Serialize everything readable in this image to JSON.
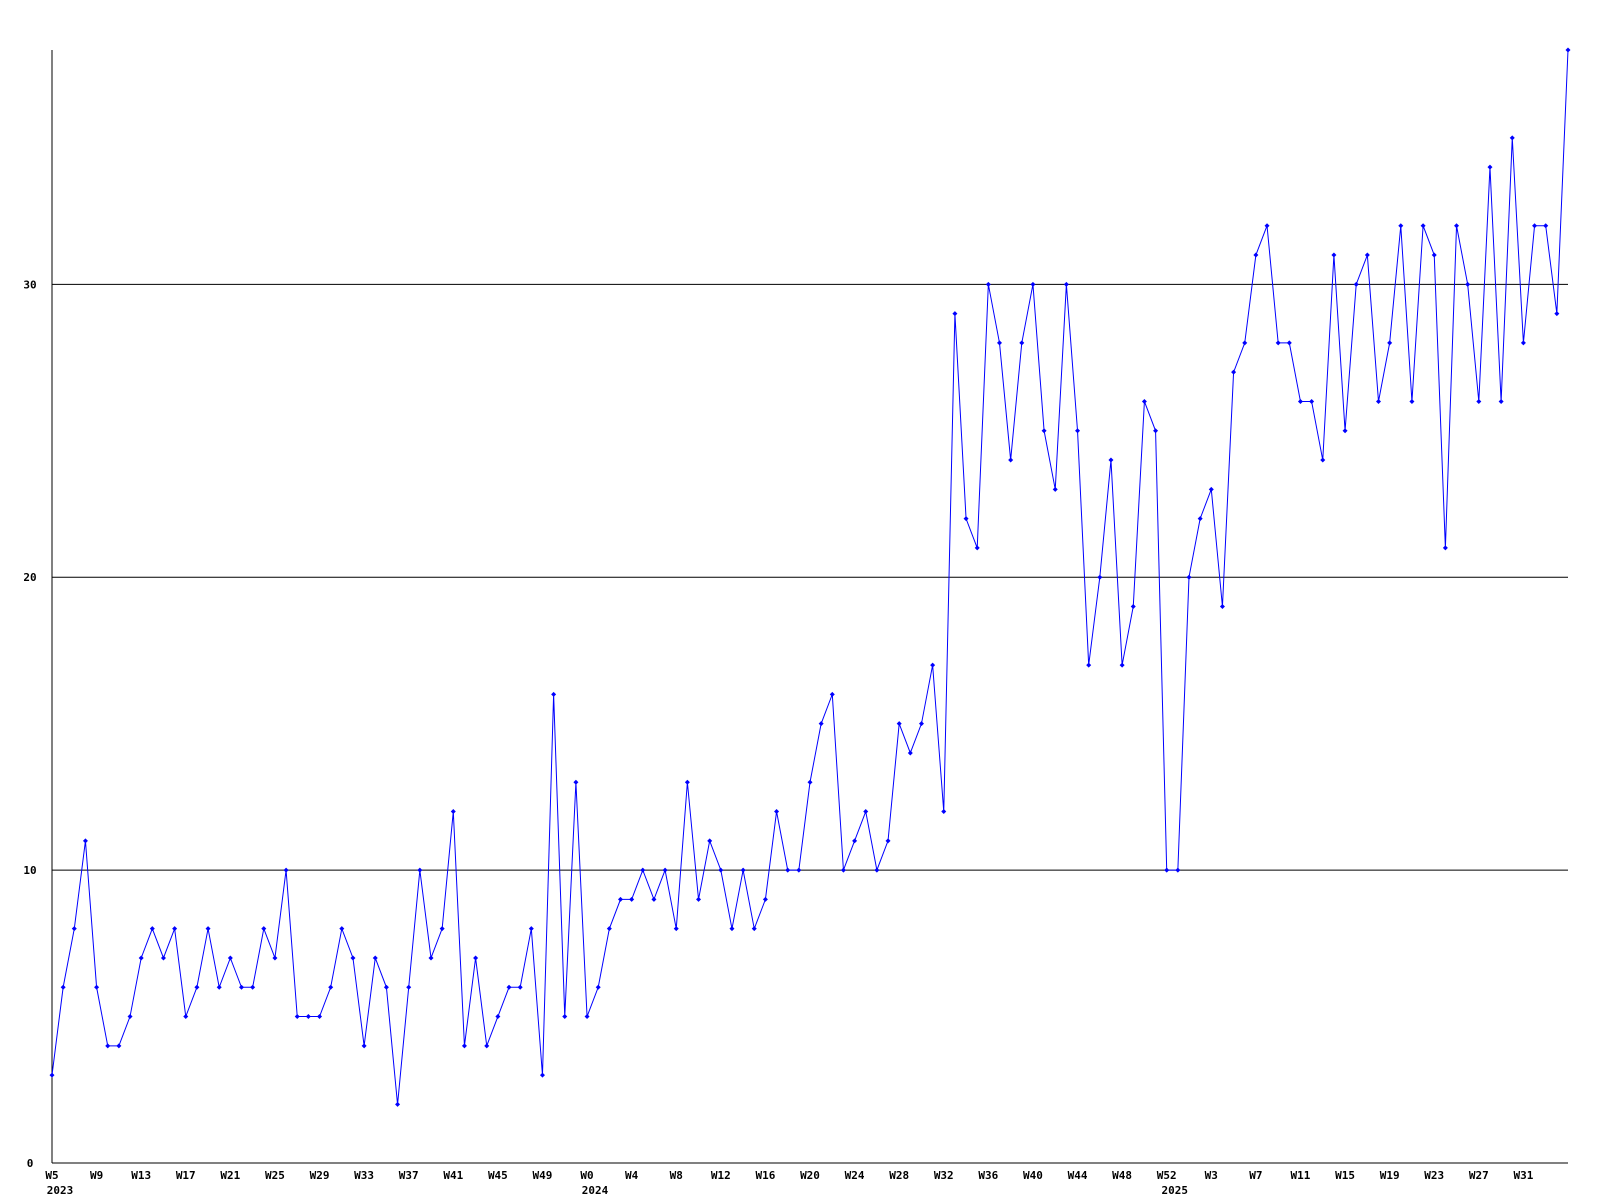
{
  "chart_data": {
    "type": "line",
    "categories": [
      "W5",
      null,
      null,
      null,
      "W9",
      null,
      null,
      null,
      "W13",
      null,
      null,
      null,
      "W17",
      null,
      null,
      null,
      "W21",
      null,
      null,
      null,
      "W25",
      null,
      null,
      null,
      "W29",
      null,
      null,
      null,
      "W33",
      null,
      null,
      null,
      "W37",
      null,
      null,
      null,
      "W41",
      null,
      null,
      null,
      "W45",
      null,
      null,
      null,
      "W49",
      null,
      null,
      null,
      "W0",
      null,
      null,
      null,
      "W4",
      null,
      null,
      null,
      "W8",
      null,
      null,
      null,
      "W12",
      null,
      null,
      null,
      "W16",
      null,
      null,
      null,
      "W20",
      null,
      null,
      null,
      "W24",
      null,
      null,
      null,
      "W28",
      null,
      null,
      null,
      "W32",
      null,
      null,
      null,
      "W36",
      null,
      null,
      null,
      "W40",
      null,
      null,
      null,
      "W44",
      null,
      null,
      null,
      "W48",
      null,
      null,
      null,
      "W52",
      null,
      null,
      null,
      "W3",
      null,
      null,
      null,
      "W7",
      null,
      null,
      null,
      "W11",
      null,
      null,
      null,
      "W15",
      null,
      null,
      null,
      "W19",
      null,
      null,
      null,
      "W23",
      null,
      null,
      null,
      "W27",
      null,
      null,
      null,
      "W31",
      null,
      null,
      null,
      null
    ],
    "year_labels": [
      {
        "at": 0,
        "label": "2023"
      },
      {
        "at": 48,
        "label": "2024"
      },
      {
        "at": 100,
        "label": "2025"
      }
    ],
    "series": [
      {
        "color": "#0000ff",
        "values": [
          3,
          6,
          8,
          11,
          6,
          4,
          4,
          5,
          7,
          8,
          7,
          8,
          5,
          6,
          8,
          6,
          7,
          6,
          6,
          8,
          7,
          10,
          5,
          5,
          5,
          6,
          8,
          7,
          4,
          7,
          6,
          2,
          6,
          10,
          7,
          8,
          12,
          4,
          7,
          4,
          5,
          6,
          6,
          8,
          3,
          16,
          5,
          13,
          5,
          6,
          8,
          9,
          9,
          10,
          9,
          10,
          8,
          13,
          9,
          11,
          10,
          8,
          10,
          8,
          9,
          12,
          10,
          10,
          13,
          15,
          16,
          10,
          11,
          12,
          10,
          11,
          15,
          14,
          15,
          17,
          12,
          29,
          22,
          21,
          30,
          28,
          24,
          28,
          30,
          25,
          23,
          30,
          25,
          17,
          20,
          24,
          17,
          19,
          26,
          25,
          10,
          10,
          20,
          22,
          23,
          19,
          27,
          28,
          31,
          32,
          28,
          28,
          26,
          26,
          24,
          31,
          25,
          30,
          31,
          26,
          28,
          32,
          26,
          32,
          31,
          21,
          32,
          30,
          26,
          34,
          26,
          35,
          28,
          32,
          32,
          29,
          38
        ]
      }
    ],
    "ylim": [
      0,
      38
    ],
    "yticks": [
      0,
      10,
      20,
      30
    ],
    "grid": true
  }
}
